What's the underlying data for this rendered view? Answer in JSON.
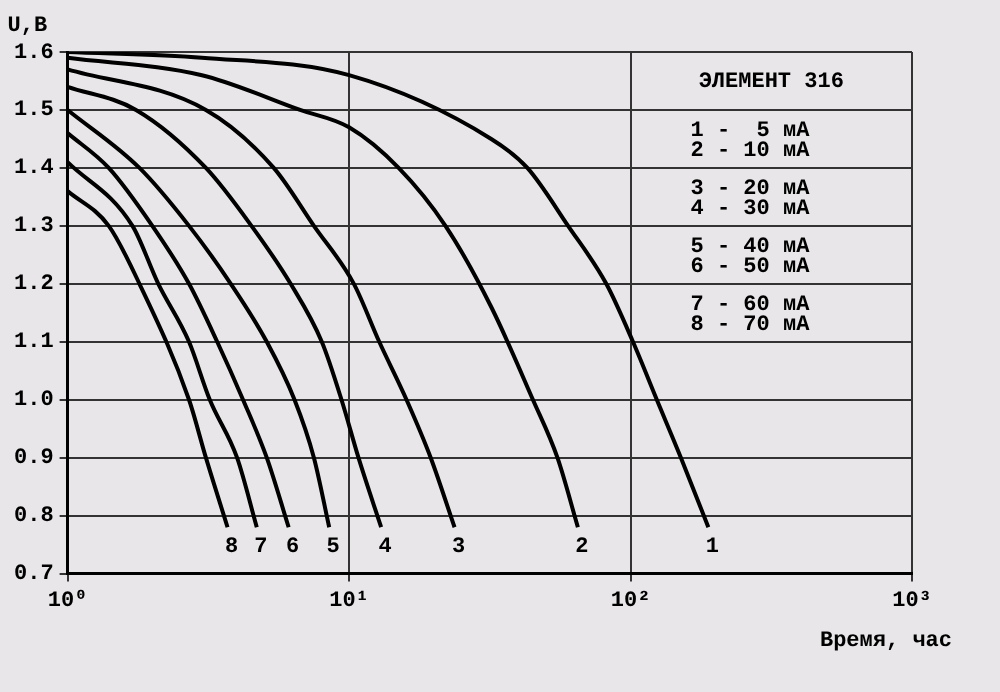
{
  "chart_data": {
    "type": "line",
    "title": "ЭЛЕМЕНТ 316",
    "xlabel": "Время, час",
    "ylabel": "U,B",
    "log": "x",
    "grid": true,
    "legend": false,
    "marker": "none",
    "line_style": "solid",
    "xlim": [
      1,
      1000
    ],
    "xticks": [
      {
        "value": 1,
        "label": "10⁰"
      },
      {
        "value": 10,
        "label": "10¹"
      },
      {
        "value": 100,
        "label": "10²"
      },
      {
        "value": 1000,
        "label": "10³"
      }
    ],
    "ylim": [
      0.7,
      1.6
    ],
    "yticks": [
      0.7,
      0.8,
      0.9,
      {
        "value": 1,
        "label": "1.0"
      },
      1.1,
      1.2,
      1.3,
      1.4,
      1.5,
      1.6
    ],
    "annotations": [
      "1 -  5 мА",
      "2 - 10 мА",
      "3 - 20 мА",
      "4 - 30 мА",
      "5 - 40 мА",
      "6 - 50 мА",
      "7 - 60 мА",
      "8 - 70 мА"
    ],
    "series": [
      {
        "name": "1",
        "color": "#000000",
        "x": [
          1,
          3,
          10,
          32,
          43,
          60,
          82,
          102,
          124,
          151,
          189
        ],
        "values": [
          1.6,
          1.59,
          1.56,
          1.45,
          1.4,
          1.3,
          1.2,
          1.1,
          1.0,
          0.9,
          0.78
        ]
      },
      {
        "name": "2",
        "color": "#000000",
        "x": [
          1,
          3,
          6.7,
          10,
          15,
          22,
          32,
          45,
          55,
          65
        ],
        "values": [
          1.59,
          1.56,
          1.5,
          1.47,
          1.4,
          1.3,
          1.16,
          1.0,
          0.9,
          0.78
        ]
      },
      {
        "name": "3",
        "color": "#000000",
        "x": [
          1,
          3.1,
          5.4,
          7.5,
          10.4,
          12.8,
          16,
          19.5,
          23.7
        ],
        "values": [
          1.57,
          1.5,
          1.4,
          1.3,
          1.2,
          1.1,
          1.0,
          0.9,
          0.78
        ]
      },
      {
        "name": "4",
        "color": "#000000",
        "x": [
          1,
          1.75,
          3.1,
          4.5,
          6.2,
          8,
          9.4,
          10.8,
          13
        ],
        "values": [
          1.54,
          1.5,
          1.4,
          1.3,
          1.2,
          1.1,
          1.0,
          0.9,
          0.78
        ]
      },
      {
        "name": "5",
        "color": "#000000",
        "x": [
          1,
          1.8,
          2.7,
          3.8,
          5.1,
          6.4,
          7.5,
          8.5
        ],
        "values": [
          1.5,
          1.4,
          1.3,
          1.2,
          1.1,
          1.0,
          0.9,
          0.78
        ]
      },
      {
        "name": "6",
        "color": "#000000",
        "x": [
          1,
          1.4,
          2,
          2.7,
          3.4,
          4.2,
          5.1,
          6.1
        ],
        "values": [
          1.46,
          1.4,
          1.3,
          1.2,
          1.1,
          1.0,
          0.9,
          0.78
        ]
      },
      {
        "name": "7",
        "color": "#000000",
        "x": [
          1,
          1.7,
          2.1,
          2.7,
          3.2,
          4,
          4.7
        ],
        "values": [
          1.41,
          1.3,
          1.2,
          1.1,
          1.0,
          0.9,
          0.78
        ]
      },
      {
        "name": "8",
        "color": "#000000",
        "x": [
          1,
          1.4,
          1.8,
          2.7,
          3.1,
          3.7
        ],
        "values": [
          1.36,
          1.3,
          1.2,
          1.0,
          0.9,
          0.78
        ]
      }
    ]
  }
}
